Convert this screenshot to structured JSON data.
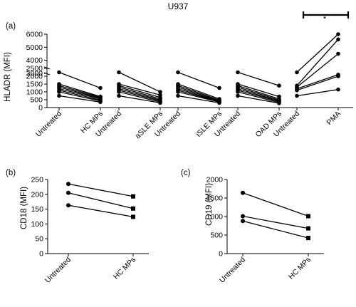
{
  "figure": {
    "title": "U937"
  },
  "chart_data": [
    {
      "panel": "(a)",
      "type": "line",
      "ylabel": "HLADR (MFI)",
      "ylim": [
        0,
        6000
      ],
      "broken_axis": {
        "gap": [
          2500,
          3000
        ]
      },
      "y_ticks": [
        "0",
        "500",
        "1000",
        "1500",
        "2000",
        "2500",
        "3000",
        "4000",
        "5000",
        "6000"
      ],
      "significance": "*",
      "groups": [
        {
          "categories": [
            "Untreated",
            "HC MPs"
          ],
          "pairs": [
            [
              2250,
              1250
            ],
            [
              1500,
              700
            ],
            [
              1400,
              650
            ],
            [
              1300,
              600
            ],
            [
              1200,
              550
            ],
            [
              1100,
              480
            ],
            [
              1000,
              420
            ],
            [
              750,
              350
            ]
          ]
        },
        {
          "categories": [
            "Untreated",
            "aSLE MPs"
          ],
          "pairs": [
            [
              2250,
              1000
            ],
            [
              1500,
              800
            ],
            [
              1400,
              650
            ],
            [
              1300,
              550
            ],
            [
              1200,
              480
            ],
            [
              1100,
              420
            ],
            [
              1000,
              350
            ],
            [
              750,
              300
            ]
          ]
        },
        {
          "categories": [
            "Untreated",
            "iSLE MPs"
          ],
          "pairs": [
            [
              2250,
              1250
            ],
            [
              1500,
              550
            ],
            [
              1400,
              480
            ],
            [
              1300,
              440
            ],
            [
              1200,
              400
            ],
            [
              1100,
              380
            ],
            [
              1000,
              350
            ],
            [
              750,
              300
            ]
          ]
        },
        {
          "categories": [
            "Untreated",
            "OAD MPs"
          ],
          "pairs": [
            [
              2250,
              1400
            ],
            [
              1500,
              700
            ],
            [
              1400,
              550
            ],
            [
              1300,
              480
            ],
            [
              1200,
              420
            ],
            [
              1100,
              380
            ],
            [
              1000,
              320
            ],
            [
              750,
              280
            ]
          ]
        },
        {
          "categories": [
            "Untreated",
            "PMA"
          ],
          "pairs": [
            [
              2250,
              6000
            ],
            [
              1400,
              5600
            ],
            [
              1300,
              4500
            ],
            [
              1200,
              2100
            ],
            [
              1100,
              2000
            ],
            [
              750,
              1150
            ]
          ]
        }
      ]
    },
    {
      "panel": "(b)",
      "type": "line",
      "ylabel": "CD18 (MFI)",
      "categories": [
        "Untreated",
        "HC MPs"
      ],
      "ylim": [
        0,
        250
      ],
      "y_ticks": [
        "0",
        "50",
        "100",
        "150",
        "200",
        "250"
      ],
      "pairs": [
        [
          235,
          193
        ],
        [
          205,
          152
        ],
        [
          163,
          124
        ]
      ]
    },
    {
      "panel": "(c)",
      "type": "line",
      "ylabel": "CD19 (MFI)",
      "categories": [
        "Untreated",
        "HC MPs"
      ],
      "ylim": [
        0,
        2000
      ],
      "y_ticks": [
        "0",
        "500",
        "1000",
        "1500",
        "2000"
      ],
      "pairs": [
        [
          1640,
          1010
        ],
        [
          1010,
          680
        ],
        [
          880,
          420
        ]
      ]
    }
  ]
}
